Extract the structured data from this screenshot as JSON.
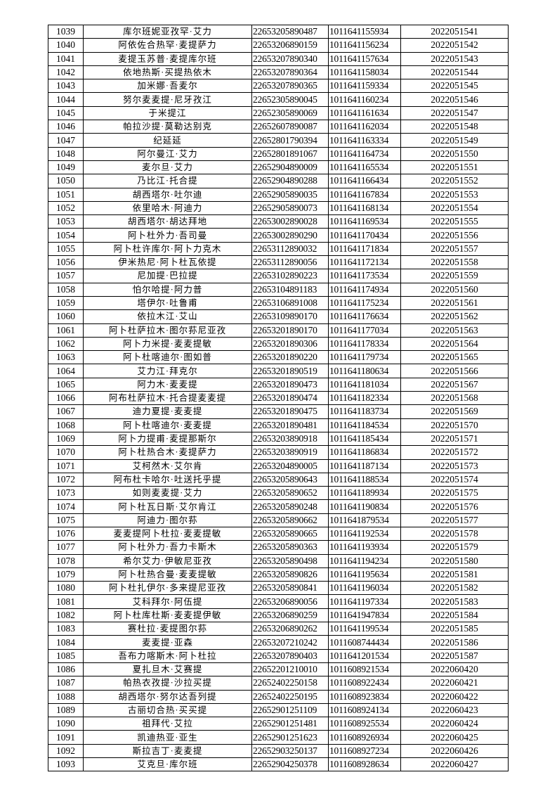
{
  "rows": [
    [
      "1039",
      "库尔班妮亚孜罕·艾力",
      "22653205890487",
      "1011641155934",
      "2022051541"
    ],
    [
      "1040",
      "阿依佐合热罕·麦提萨力",
      "22653206890159",
      "1011641156234",
      "2022051542"
    ],
    [
      "1041",
      "麦提玉苏普·麦提库尔班",
      "22653207890340",
      "1011641157634",
      "2022051543"
    ],
    [
      "1042",
      "依地热斯·买提热依木",
      "22653207890364",
      "1011641158034",
      "2022051544"
    ],
    [
      "1043",
      "加米娜·吾麦尔",
      "22653207890365",
      "1011641159334",
      "2022051545"
    ],
    [
      "1044",
      "努尔麦麦提·尼牙孜江",
      "22652305890045",
      "1011641160234",
      "2022051546"
    ],
    [
      "1045",
      "于米提江",
      "22652305890069",
      "1011641161634",
      "2022051547"
    ],
    [
      "1046",
      "帕拉沙提·莫勒达别克",
      "22652607890087",
      "1011641162034",
      "2022051548"
    ],
    [
      "1047",
      "纪延延",
      "22652801790394",
      "1011641163334",
      "2022051549"
    ],
    [
      "1048",
      "阿尔曼江·艾力",
      "22652801891067",
      "1011641164734",
      "2022051550"
    ],
    [
      "1049",
      "麦尔旦·艾力",
      "22652904890009",
      "1011641165534",
      "2022051551"
    ],
    [
      "1050",
      "乃比江·托合提",
      "22652904890288",
      "1011641166434",
      "2022051552"
    ],
    [
      "1051",
      "胡西塔尔·吐尔迪",
      "22652905890035",
      "1011641167834",
      "2022051553"
    ],
    [
      "1052",
      "依里哈木·阿迪力",
      "22652905890073",
      "1011641168134",
      "2022051554"
    ],
    [
      "1053",
      "胡西塔尔·胡达拜地",
      "22653002890028",
      "1011641169534",
      "2022051555"
    ],
    [
      "1054",
      "阿卜杜外力·吾司曼",
      "22653002890290",
      "1011641170434",
      "2022051556"
    ],
    [
      "1055",
      "阿卜杜许库尔·阿卜力克木",
      "22653112890032",
      "1011641171834",
      "2022051557"
    ],
    [
      "1056",
      "伊米热尼·阿卜杜瓦依提",
      "22653112890056",
      "1011641172134",
      "2022051558"
    ],
    [
      "1057",
      "尼加提·巴拉提",
      "22653102890223",
      "1011641173534",
      "2022051559"
    ],
    [
      "1058",
      "怕尔哈提·阿力普",
      "22653104891183",
      "1011641174934",
      "2022051560"
    ],
    [
      "1059",
      "塔伊尔·吐鲁甫",
      "22653106891008",
      "1011641175234",
      "2022051561"
    ],
    [
      "1060",
      "依拉木江·艾山",
      "22653109890170",
      "1011641176634",
      "2022051562"
    ],
    [
      "1061",
      "阿卜杜萨拉木·图尔荪尼亚孜",
      "22653201890170",
      "1011641177034",
      "2022051563"
    ],
    [
      "1062",
      "阿卜力米提·麦麦提敏",
      "22653201890306",
      "1011641178334",
      "2022051564"
    ],
    [
      "1063",
      "阿卜杜喀迪尔·图如普",
      "22653201890220",
      "1011641179734",
      "2022051565"
    ],
    [
      "1064",
      "艾力江·拜克尔",
      "22653201890519",
      "1011641180634",
      "2022051566"
    ],
    [
      "1065",
      "阿力木·麦麦提",
      "22653201890473",
      "1011641181034",
      "2022051567"
    ],
    [
      "1066",
      "阿布杜萨拉木·托合提麦麦提",
      "22653201890474",
      "1011641182334",
      "2022051568"
    ],
    [
      "1067",
      "迪力夏提·麦麦提",
      "22653201890475",
      "1011641183734",
      "2022051569"
    ],
    [
      "1068",
      "阿卜杜喀迪尔·麦麦提",
      "22653201890481",
      "1011641184534",
      "2022051570"
    ],
    [
      "1069",
      "阿卜力提甫·麦提那斯尔",
      "22653203890918",
      "1011641185434",
      "2022051571"
    ],
    [
      "1070",
      "阿卜杜热合木·麦提萨力",
      "22653203890919",
      "1011641186834",
      "2022051572"
    ],
    [
      "1071",
      "艾柯然木·艾尔肯",
      "22653204890005",
      "1011641187134",
      "2022051573"
    ],
    [
      "1072",
      "阿布杜卡哈尔·吐送托乎提",
      "22653205890643",
      "1011641188534",
      "2022051574"
    ],
    [
      "1073",
      "如则麦麦提·艾力",
      "22653205890652",
      "1011641189934",
      "2022051575"
    ],
    [
      "1074",
      "阿卜杜瓦日斯·艾尔肯江",
      "22653205890248",
      "1011641190834",
      "2022051576"
    ],
    [
      "1075",
      "阿迪力·图尔荪",
      "22653205890662",
      "1011641879534",
      "2022051577"
    ],
    [
      "1076",
      "麦麦提阿卜杜拉·麦麦提敏",
      "22653205890665",
      "1011641192534",
      "2022051578"
    ],
    [
      "1077",
      "阿卜杜外力·吾力卡斯木",
      "22653205890363",
      "1011641193934",
      "2022051579"
    ],
    [
      "1078",
      "希尔艾力·伊敏尼亚孜",
      "22653205890498",
      "1011641194234",
      "2022051580"
    ],
    [
      "1079",
      "阿卜杜热合曼·麦麦提敏",
      "22653205890826",
      "1011641195634",
      "2022051581"
    ],
    [
      "1080",
      "阿卜杜扎伊尔·多来提尼亚孜",
      "22653205890841",
      "1011641196034",
      "2022051582"
    ],
    [
      "1081",
      "艾科拜尔·阿伍提",
      "22653206890056",
      "1011641197334",
      "2022051583"
    ],
    [
      "1082",
      "阿卜杜库杜斯·麦麦提伊敏",
      "22653206890259",
      "1011641947834",
      "2022051584"
    ],
    [
      "1083",
      "赛杜拉·麦提图尔荪",
      "22653206890262",
      "1011641199534",
      "2022051585"
    ],
    [
      "1084",
      "麦麦提·亚森",
      "22653207210242",
      "1011608744434",
      "2022051586"
    ],
    [
      "1085",
      "吾布力喀斯木·阿卜杜拉",
      "22653207890403",
      "1011641201534",
      "2022051587"
    ],
    [
      "1086",
      "夏扎旦木·艾赛提",
      "22652201210010",
      "1011608921534",
      "2022060420"
    ],
    [
      "1087",
      "帕热衣孜提·沙拉买提",
      "22652402250158",
      "1011608922434",
      "2022060421"
    ],
    [
      "1088",
      "胡西塔尔·努尔达吾列提",
      "22652402250195",
      "1011608923834",
      "2022060422"
    ],
    [
      "1089",
      "古丽切合热·买买提",
      "22652901251109",
      "1011608924134",
      "2022060423"
    ],
    [
      "1090",
      "祖拜代·艾拉",
      "22652901251481",
      "1011608925534",
      "2022060424"
    ],
    [
      "1091",
      "凯迪热亚·亚生",
      "22652901251623",
      "1011608926934",
      "2022060425"
    ],
    [
      "1092",
      "斯拉吉丁·麦麦提",
      "22652903250137",
      "1011608927234",
      "2022060426"
    ],
    [
      "1093",
      "艾克旦·库尔班",
      "22652904250378",
      "1011608928634",
      "2022060427"
    ]
  ]
}
